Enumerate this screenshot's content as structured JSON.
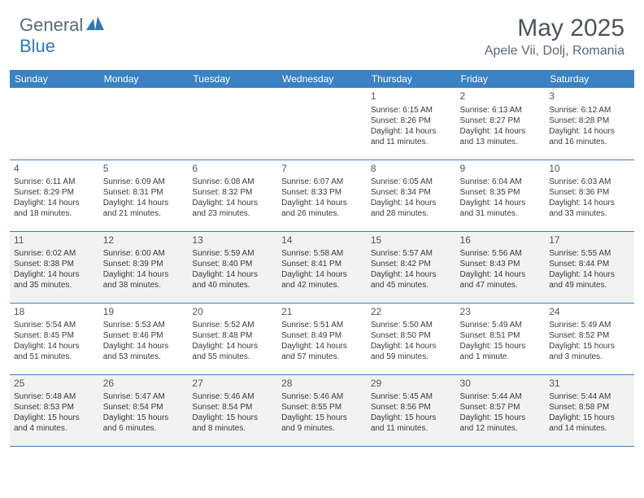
{
  "brand": {
    "general": "General",
    "blue": "Blue"
  },
  "title": "May 2025",
  "location": "Apele Vii, Dolj, Romania",
  "colors": {
    "header_bg": "#3b82c4",
    "header_text": "#ffffff",
    "alt_row_bg": "#f2f2f2",
    "border": "#3b82c4",
    "title_color": "#4a5560",
    "logo_gray": "#5a6a78",
    "logo_blue": "#2f78b9"
  },
  "day_headers": [
    "Sunday",
    "Monday",
    "Tuesday",
    "Wednesday",
    "Thursday",
    "Friday",
    "Saturday"
  ],
  "weeks": [
    [
      null,
      null,
      null,
      null,
      {
        "n": "1",
        "sr": "Sunrise: 6:15 AM",
        "ss": "Sunset: 8:26 PM",
        "dl": "Daylight: 14 hours and 11 minutes."
      },
      {
        "n": "2",
        "sr": "Sunrise: 6:13 AM",
        "ss": "Sunset: 8:27 PM",
        "dl": "Daylight: 14 hours and 13 minutes."
      },
      {
        "n": "3",
        "sr": "Sunrise: 6:12 AM",
        "ss": "Sunset: 8:28 PM",
        "dl": "Daylight: 14 hours and 16 minutes."
      }
    ],
    [
      {
        "n": "4",
        "sr": "Sunrise: 6:11 AM",
        "ss": "Sunset: 8:29 PM",
        "dl": "Daylight: 14 hours and 18 minutes."
      },
      {
        "n": "5",
        "sr": "Sunrise: 6:09 AM",
        "ss": "Sunset: 8:31 PM",
        "dl": "Daylight: 14 hours and 21 minutes."
      },
      {
        "n": "6",
        "sr": "Sunrise: 6:08 AM",
        "ss": "Sunset: 8:32 PM",
        "dl": "Daylight: 14 hours and 23 minutes."
      },
      {
        "n": "7",
        "sr": "Sunrise: 6:07 AM",
        "ss": "Sunset: 8:33 PM",
        "dl": "Daylight: 14 hours and 26 minutes."
      },
      {
        "n": "8",
        "sr": "Sunrise: 6:05 AM",
        "ss": "Sunset: 8:34 PM",
        "dl": "Daylight: 14 hours and 28 minutes."
      },
      {
        "n": "9",
        "sr": "Sunrise: 6:04 AM",
        "ss": "Sunset: 8:35 PM",
        "dl": "Daylight: 14 hours and 31 minutes."
      },
      {
        "n": "10",
        "sr": "Sunrise: 6:03 AM",
        "ss": "Sunset: 8:36 PM",
        "dl": "Daylight: 14 hours and 33 minutes."
      }
    ],
    [
      {
        "n": "11",
        "sr": "Sunrise: 6:02 AM",
        "ss": "Sunset: 8:38 PM",
        "dl": "Daylight: 14 hours and 35 minutes."
      },
      {
        "n": "12",
        "sr": "Sunrise: 6:00 AM",
        "ss": "Sunset: 8:39 PM",
        "dl": "Daylight: 14 hours and 38 minutes."
      },
      {
        "n": "13",
        "sr": "Sunrise: 5:59 AM",
        "ss": "Sunset: 8:40 PM",
        "dl": "Daylight: 14 hours and 40 minutes."
      },
      {
        "n": "14",
        "sr": "Sunrise: 5:58 AM",
        "ss": "Sunset: 8:41 PM",
        "dl": "Daylight: 14 hours and 42 minutes."
      },
      {
        "n": "15",
        "sr": "Sunrise: 5:57 AM",
        "ss": "Sunset: 8:42 PM",
        "dl": "Daylight: 14 hours and 45 minutes."
      },
      {
        "n": "16",
        "sr": "Sunrise: 5:56 AM",
        "ss": "Sunset: 8:43 PM",
        "dl": "Daylight: 14 hours and 47 minutes."
      },
      {
        "n": "17",
        "sr": "Sunrise: 5:55 AM",
        "ss": "Sunset: 8:44 PM",
        "dl": "Daylight: 14 hours and 49 minutes."
      }
    ],
    [
      {
        "n": "18",
        "sr": "Sunrise: 5:54 AM",
        "ss": "Sunset: 8:45 PM",
        "dl": "Daylight: 14 hours and 51 minutes."
      },
      {
        "n": "19",
        "sr": "Sunrise: 5:53 AM",
        "ss": "Sunset: 8:46 PM",
        "dl": "Daylight: 14 hours and 53 minutes."
      },
      {
        "n": "20",
        "sr": "Sunrise: 5:52 AM",
        "ss": "Sunset: 8:48 PM",
        "dl": "Daylight: 14 hours and 55 minutes."
      },
      {
        "n": "21",
        "sr": "Sunrise: 5:51 AM",
        "ss": "Sunset: 8:49 PM",
        "dl": "Daylight: 14 hours and 57 minutes."
      },
      {
        "n": "22",
        "sr": "Sunrise: 5:50 AM",
        "ss": "Sunset: 8:50 PM",
        "dl": "Daylight: 14 hours and 59 minutes."
      },
      {
        "n": "23",
        "sr": "Sunrise: 5:49 AM",
        "ss": "Sunset: 8:51 PM",
        "dl": "Daylight: 15 hours and 1 minute."
      },
      {
        "n": "24",
        "sr": "Sunrise: 5:49 AM",
        "ss": "Sunset: 8:52 PM",
        "dl": "Daylight: 15 hours and 3 minutes."
      }
    ],
    [
      {
        "n": "25",
        "sr": "Sunrise: 5:48 AM",
        "ss": "Sunset: 8:53 PM",
        "dl": "Daylight: 15 hours and 4 minutes."
      },
      {
        "n": "26",
        "sr": "Sunrise: 5:47 AM",
        "ss": "Sunset: 8:54 PM",
        "dl": "Daylight: 15 hours and 6 minutes."
      },
      {
        "n": "27",
        "sr": "Sunrise: 5:46 AM",
        "ss": "Sunset: 8:54 PM",
        "dl": "Daylight: 15 hours and 8 minutes."
      },
      {
        "n": "28",
        "sr": "Sunrise: 5:46 AM",
        "ss": "Sunset: 8:55 PM",
        "dl": "Daylight: 15 hours and 9 minutes."
      },
      {
        "n": "29",
        "sr": "Sunrise: 5:45 AM",
        "ss": "Sunset: 8:56 PM",
        "dl": "Daylight: 15 hours and 11 minutes."
      },
      {
        "n": "30",
        "sr": "Sunrise: 5:44 AM",
        "ss": "Sunset: 8:57 PM",
        "dl": "Daylight: 15 hours and 12 minutes."
      },
      {
        "n": "31",
        "sr": "Sunrise: 5:44 AM",
        "ss": "Sunset: 8:58 PM",
        "dl": "Daylight: 15 hours and 14 minutes."
      }
    ]
  ]
}
